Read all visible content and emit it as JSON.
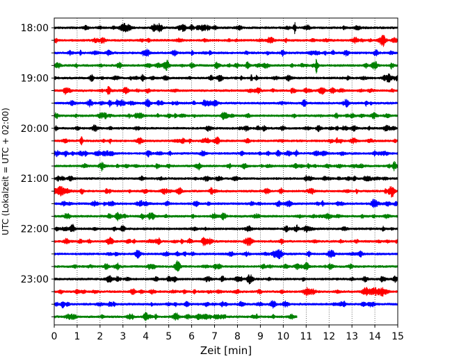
{
  "chart_data": {
    "type": "line",
    "title": "",
    "xlabel": "Zeit  [min]",
    "ylabel": "UTC (Lokalzeit = UTC + 02:00)",
    "xlim": [
      0,
      15
    ],
    "x_ticks": [
      0,
      1,
      2,
      3,
      4,
      5,
      6,
      7,
      8,
      9,
      10,
      11,
      12,
      13,
      14,
      15
    ],
    "grid": "vertical-dotted",
    "trace_interval_min": 15,
    "traces_start": "18:00",
    "trace_count": 24,
    "last_trace_end_min": 10.6,
    "y_tick_labels": [
      "18:00",
      "19:00",
      "20:00",
      "21:00",
      "22:00",
      "23:00"
    ],
    "color_cycle": [
      "#000000",
      "#ff0000",
      "#0000ff",
      "#008000"
    ],
    "notable_events": [
      {
        "trace": "18:45",
        "x_min": 11.45,
        "description": "large spike"
      },
      {
        "trace": "21:15",
        "x_min": 0.3,
        "description": "burst"
      },
      {
        "trace": "23:15",
        "x_min": 14.0,
        "description": "burst"
      }
    ]
  }
}
